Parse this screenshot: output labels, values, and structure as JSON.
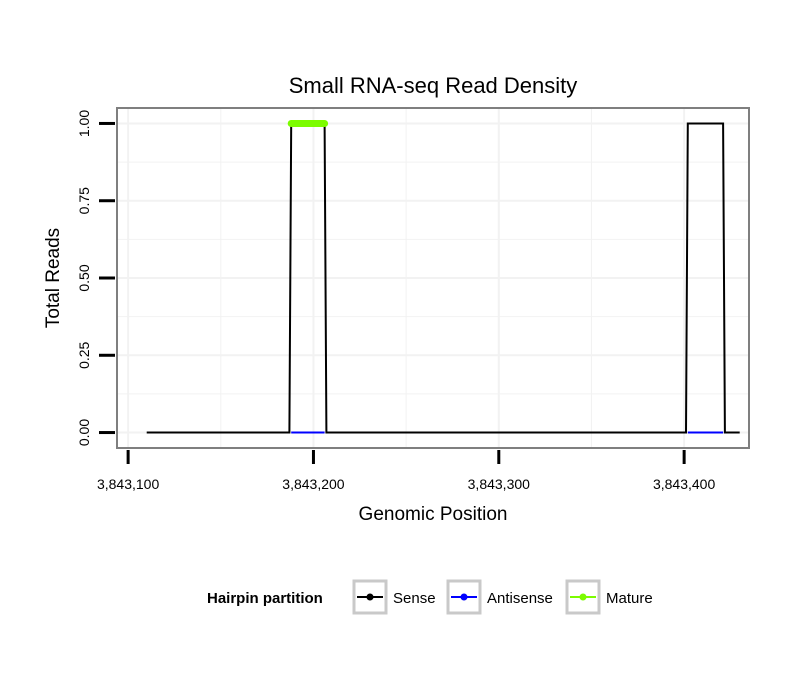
{
  "chart_data": {
    "type": "line",
    "title": "Small RNA-seq Read Density",
    "xlabel": "Genomic Position",
    "ylabel": "Total Reads",
    "xlim": [
      3843094,
      3843435
    ],
    "ylim": [
      -0.05,
      1.05
    ],
    "x_ticks": [
      3843100,
      3843200,
      3843300,
      3843400
    ],
    "x_tick_labels": [
      "3,843,100",
      "3,843,200",
      "3,843,300",
      "3,843,400"
    ],
    "y_ticks": [
      0,
      0.25,
      0.5,
      0.75,
      1.0
    ],
    "y_tick_labels": [
      "0.00",
      "0.25",
      "0.50",
      "0.75",
      "1.00"
    ],
    "grid": true,
    "legend": {
      "title": "Hairpin partition",
      "position": "bottom",
      "entries": [
        "Sense",
        "Antisense",
        "Mature"
      ]
    },
    "series": [
      {
        "name": "Sense",
        "color": "#000000",
        "x": [
          3843110,
          3843187,
          3843188,
          3843206,
          3843207,
          3843401,
          3843402,
          3843421,
          3843422,
          3843430
        ],
        "y": [
          0,
          0,
          1,
          1,
          0,
          0,
          1,
          1,
          0,
          0
        ]
      },
      {
        "name": "Antisense",
        "color": "#0000ff",
        "x": [
          3843188,
          3843206
        ],
        "y": [
          0,
          0
        ]
      },
      {
        "name": "Antisense",
        "color": "#0000ff",
        "x": [
          3843402,
          3843421
        ],
        "y": [
          0,
          0
        ]
      },
      {
        "name": "Mature",
        "color": "#7cfc00",
        "x": [
          3843188,
          3843206
        ],
        "y": [
          1,
          1
        ]
      }
    ]
  }
}
